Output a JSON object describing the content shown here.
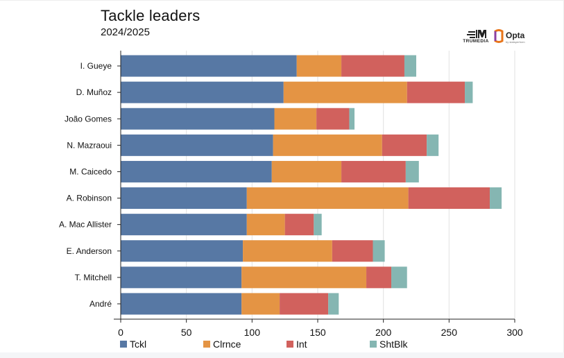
{
  "header": {
    "title": "Tackle leaders",
    "subtitle": "2024/2025"
  },
  "logos": {
    "trumedia": "TRUMEDIA",
    "opta": "Opta",
    "opta_sub": "by statsperform"
  },
  "chart_data": {
    "type": "bar",
    "orientation": "horizontal",
    "stacked": true,
    "title": "Tackle leaders",
    "subtitle": "2024/2025",
    "categories": [
      "I. Gueye",
      "D. Muñoz",
      "João Gomes",
      "N. Mazraoui",
      "M. Caicedo",
      "A. Robinson",
      "A. Mac Allister",
      "E. Anderson",
      "T. Mitchell",
      "André"
    ],
    "series": [
      {
        "name": "Tckl",
        "color": "#5778a4",
        "values": [
          134,
          124,
          117,
          116,
          115,
          96,
          96,
          93,
          92,
          92
        ]
      },
      {
        "name": "Clrnce",
        "color": "#e49444",
        "values": [
          34,
          94,
          32,
          83,
          53,
          123,
          29,
          68,
          95,
          29
        ]
      },
      {
        "name": "Int",
        "color": "#d1615d",
        "values": [
          48,
          44,
          25,
          34,
          49,
          62,
          22,
          31,
          19,
          37
        ]
      },
      {
        "name": "ShtBlk",
        "color": "#85b6b2",
        "values": [
          9,
          6,
          4,
          9,
          10,
          9,
          6,
          9,
          12,
          8
        ]
      }
    ],
    "xlim": [
      0,
      300
    ],
    "xticks": [
      0,
      50,
      100,
      150,
      200,
      250,
      300
    ],
    "grid": true,
    "legend": "bottom"
  }
}
